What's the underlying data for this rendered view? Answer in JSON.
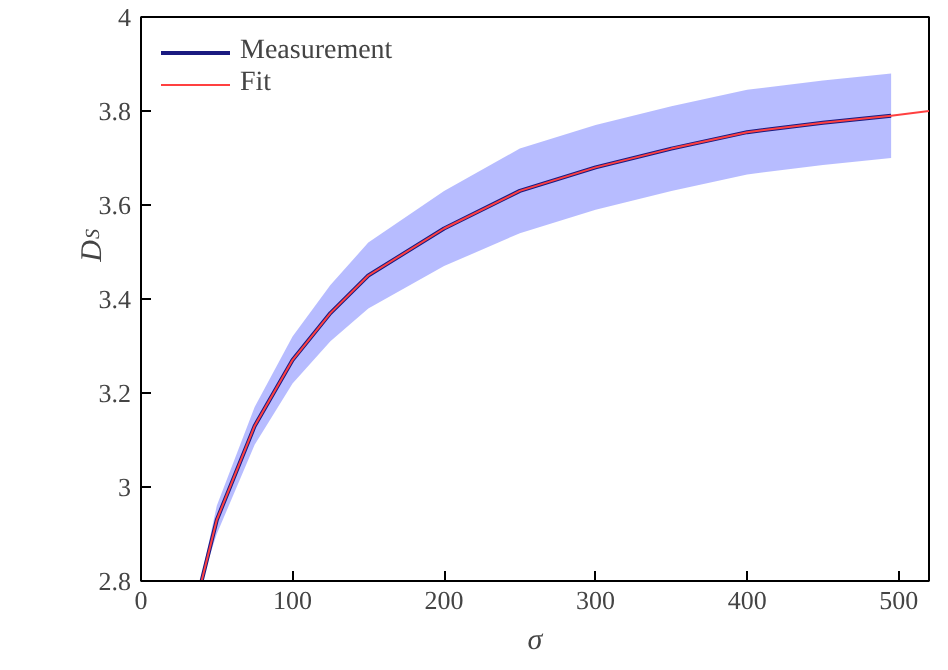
{
  "chart_data": {
    "type": "line",
    "xlabel": "σ",
    "ylabel": "D$_{S}$",
    "xlim": [
      0,
      520
    ],
    "ylim": [
      2.8,
      4
    ],
    "xticks": [
      0,
      100,
      200,
      300,
      400,
      500
    ],
    "yticks": [
      2.8,
      3,
      3.2,
      3.4,
      3.6,
      3.8,
      4
    ],
    "grid": false,
    "legend": "top left",
    "line_style": "solid",
    "marker": "none",
    "series": [
      {
        "name": "Measurement",
        "color": "#1a1a80",
        "x": [
          40,
          50,
          75,
          100,
          125,
          150,
          200,
          250,
          300,
          350,
          400,
          450,
          495
        ],
        "values": [
          2.8,
          2.93,
          3.13,
          3.27,
          3.37,
          3.45,
          3.55,
          3.63,
          3.68,
          3.72,
          3.755,
          3.775,
          3.79
        ],
        "lower": [
          2.8,
          2.9,
          3.09,
          3.22,
          3.31,
          3.38,
          3.47,
          3.54,
          3.59,
          3.63,
          3.665,
          3.685,
          3.7
        ],
        "upper": [
          2.81,
          2.96,
          3.17,
          3.32,
          3.43,
          3.52,
          3.63,
          3.72,
          3.77,
          3.81,
          3.845,
          3.865,
          3.88
        ]
      },
      {
        "name": "Fit",
        "color": "#ff4040",
        "x": [
          40,
          50,
          75,
          100,
          125,
          150,
          200,
          250,
          300,
          350,
          400,
          450,
          495,
          520
        ],
        "values": [
          2.8,
          2.93,
          3.13,
          3.27,
          3.37,
          3.45,
          3.55,
          3.63,
          3.68,
          3.72,
          3.755,
          3.775,
          3.79,
          3.8
        ]
      }
    ]
  }
}
